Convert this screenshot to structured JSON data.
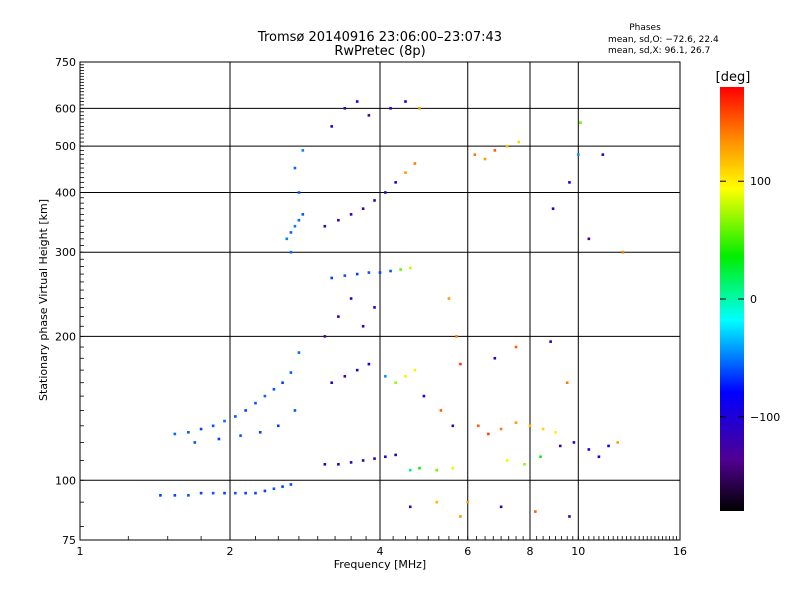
{
  "chart_data": {
    "type": "scatter",
    "title": "Tromsø 20140916 23:06:00–23:07:43",
    "subtitle": "RwPretec (8p)",
    "xlabel": "Frequency [MHz]",
    "ylabel": "Stationary phase Virtual Height [km]",
    "x_scale": "log2",
    "y_scale": "log",
    "xlim": [
      1,
      16
    ],
    "ylim": [
      75,
      750
    ],
    "x_ticks": [
      1,
      2,
      4,
      6,
      8,
      10,
      16
    ],
    "x_tick_labels": [
      "1",
      "2",
      "4",
      "6",
      "8",
      "10",
      "16"
    ],
    "y_ticks": [
      75,
      100,
      200,
      300,
      400,
      500,
      600,
      750
    ],
    "y_tick_labels": [
      "75",
      "100",
      "200",
      "300",
      "400",
      "500",
      "600",
      "750"
    ],
    "grid": true,
    "phase_label": "Phases",
    "stats": [
      "mean, sd,O: −72.6, 22.4",
      "mean, sd,X:  96.1, 26.7"
    ],
    "colorbar": {
      "label": "[deg]",
      "range": [
        -180,
        180
      ],
      "ticks": [
        100,
        0,
        -100
      ],
      "tick_labels": [
        "100",
        "0",
        "−100"
      ],
      "colors": [
        "#ff0000",
        "#ff8800",
        "#ffff00",
        "#00ee00",
        "#00ffff",
        "#0000ff",
        "#500090",
        "#000000"
      ]
    },
    "series": [
      {
        "values": [
          [
            1.45,
            93,
            -60
          ],
          [
            1.55,
            93,
            -60
          ],
          [
            1.65,
            93,
            -55
          ],
          [
            1.75,
            94,
            -60
          ],
          [
            1.85,
            94,
            -55
          ],
          [
            1.95,
            94,
            -60
          ],
          [
            2.05,
            94,
            -55
          ],
          [
            2.15,
            94,
            -60
          ],
          [
            2.25,
            94,
            -58
          ],
          [
            2.35,
            95,
            -60
          ],
          [
            2.45,
            96,
            -55
          ],
          [
            2.55,
            97,
            -60
          ],
          [
            2.65,
            98,
            -58
          ],
          [
            1.55,
            125,
            -50
          ],
          [
            1.65,
            126,
            -55
          ],
          [
            1.75,
            128,
            -60
          ],
          [
            1.85,
            130,
            -55
          ],
          [
            1.95,
            133,
            -50
          ],
          [
            2.05,
            136,
            -55
          ],
          [
            2.15,
            140,
            -60
          ],
          [
            2.25,
            145,
            -55
          ],
          [
            2.35,
            150,
            -50
          ],
          [
            2.45,
            155,
            -55
          ],
          [
            2.55,
            160,
            -60
          ],
          [
            2.65,
            168,
            -55
          ],
          [
            2.75,
            185,
            -50
          ],
          [
            1.7,
            120,
            -55
          ],
          [
            1.9,
            122,
            -60
          ],
          [
            2.1,
            124,
            -55
          ],
          [
            2.3,
            126,
            -58
          ],
          [
            2.5,
            130,
            -60
          ],
          [
            2.7,
            140,
            -55
          ],
          [
            2.6,
            320,
            -45
          ],
          [
            2.65,
            330,
            -50
          ],
          [
            2.7,
            340,
            -45
          ],
          [
            2.75,
            350,
            -50
          ],
          [
            2.8,
            360,
            -55
          ],
          [
            2.75,
            400,
            -55
          ],
          [
            2.7,
            450,
            -50
          ],
          [
            2.8,
            490,
            -45
          ],
          [
            2.65,
            300,
            -50
          ],
          [
            3.1,
            108,
            -95
          ],
          [
            3.3,
            108,
            -100
          ],
          [
            3.5,
            109,
            -105
          ],
          [
            3.7,
            110,
            -110
          ],
          [
            3.9,
            111,
            -100
          ],
          [
            4.1,
            112,
            -95
          ],
          [
            4.3,
            113,
            -100
          ],
          [
            4.6,
            105,
            10
          ],
          [
            4.8,
            106,
            40
          ],
          [
            5.2,
            105,
            60
          ],
          [
            5.6,
            106,
            90
          ],
          [
            3.2,
            265,
            -60
          ],
          [
            3.4,
            268,
            -55
          ],
          [
            3.6,
            270,
            -60
          ],
          [
            3.8,
            272,
            -55
          ],
          [
            4.0,
            272,
            -60
          ],
          [
            4.2,
            274,
            -55
          ],
          [
            4.4,
            276,
            60
          ],
          [
            4.6,
            278,
            80
          ],
          [
            3.1,
            340,
            -110
          ],
          [
            3.3,
            350,
            -115
          ],
          [
            3.5,
            360,
            -110
          ],
          [
            3.7,
            370,
            -120
          ],
          [
            3.9,
            385,
            -110
          ],
          [
            4.1,
            400,
            -105
          ],
          [
            4.3,
            420,
            -100
          ],
          [
            4.5,
            440,
            130
          ],
          [
            4.7,
            460,
            140
          ],
          [
            3.2,
            160,
            -110
          ],
          [
            3.4,
            165,
            -120
          ],
          [
            3.6,
            170,
            -100
          ],
          [
            3.8,
            175,
            -90
          ],
          [
            4.1,
            165,
            -40
          ],
          [
            4.3,
            160,
            70
          ],
          [
            4.5,
            165,
            90
          ],
          [
            4.7,
            170,
            100
          ],
          [
            3.1,
            200,
            -130
          ],
          [
            3.3,
            220,
            -110
          ],
          [
            3.5,
            240,
            -100
          ],
          [
            3.7,
            210,
            -120
          ],
          [
            3.9,
            230,
            -90
          ],
          [
            3.2,
            550,
            -100
          ],
          [
            3.4,
            600,
            -110
          ],
          [
            3.6,
            620,
            -95
          ],
          [
            3.8,
            580,
            -120
          ],
          [
            4.2,
            600,
            -100
          ],
          [
            4.5,
            620,
            -90
          ],
          [
            4.8,
            600,
            130
          ],
          [
            6.2,
            480,
            140
          ],
          [
            6.5,
            470,
            130
          ],
          [
            6.8,
            490,
            150
          ],
          [
            7.2,
            500,
            120
          ],
          [
            7.6,
            510,
            110
          ],
          [
            6.3,
            130,
            150
          ],
          [
            6.6,
            125,
            160
          ],
          [
            7.0,
            128,
            140
          ],
          [
            7.5,
            132,
            130
          ],
          [
            8.0,
            130,
            120
          ],
          [
            8.5,
            128,
            110
          ],
          [
            9.0,
            126,
            100
          ],
          [
            7.2,
            110,
            90
          ],
          [
            7.8,
            108,
            70
          ],
          [
            8.4,
            112,
            40
          ],
          [
            9.2,
            118,
            -110
          ],
          [
            9.8,
            120,
            -100
          ],
          [
            10.5,
            116,
            -90
          ],
          [
            11.0,
            112,
            -95
          ],
          [
            11.5,
            118,
            -80
          ],
          [
            12.0,
            120,
            130
          ],
          [
            6.8,
            180,
            -110
          ],
          [
            7.5,
            190,
            150
          ],
          [
            8.8,
            195,
            -100
          ],
          [
            9.5,
            160,
            140
          ],
          [
            6.0,
            90,
            130
          ],
          [
            7.0,
            88,
            -100
          ],
          [
            8.2,
            86,
            150
          ],
          [
            9.6,
            84,
            -110
          ],
          [
            10.1,
            560,
            60
          ],
          [
            10.0,
            480,
            -40
          ],
          [
            11.2,
            480,
            -100
          ],
          [
            12.3,
            300,
            140
          ],
          [
            10.5,
            320,
            -120
          ],
          [
            9.6,
            420,
            -90
          ],
          [
            8.9,
            370,
            -100
          ],
          [
            5.5,
            240,
            130
          ],
          [
            5.7,
            200,
            140
          ],
          [
            5.8,
            175,
            160
          ],
          [
            5.3,
            140,
            150
          ],
          [
            4.9,
            150,
            -100
          ],
          [
            5.6,
            130,
            -110
          ],
          [
            5.2,
            90,
            120
          ],
          [
            5.8,
            84,
            130
          ],
          [
            4.6,
            88,
            -110
          ]
        ]
      }
    ]
  }
}
